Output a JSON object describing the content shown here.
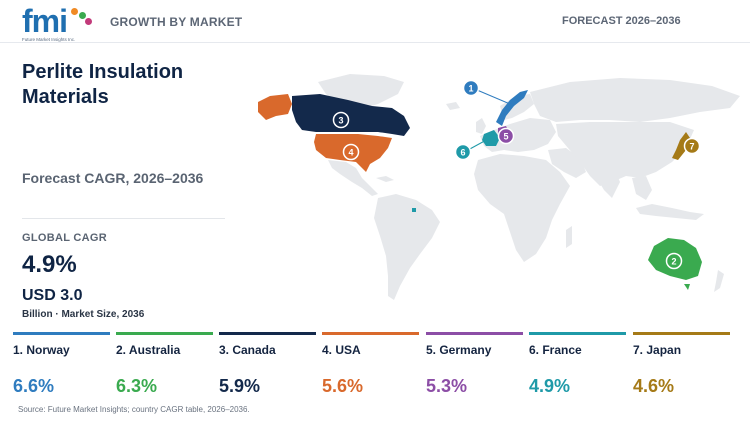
{
  "header": {
    "logo_text": "fmi",
    "logo_tagline": "Future Market Insights Inc.",
    "section_label": "GROWTH BY MARKET",
    "forecast_label": "FORECAST 2026–2036"
  },
  "summary": {
    "title": "Perlite Insulation Materials",
    "cagr_heading": "Forecast CAGR, 2026–2036",
    "global_label": "GLOBAL CAGR",
    "global_value": "4.9%",
    "market_size": "USD 3.0",
    "market_note": "Billion · Market Size, 2036"
  },
  "colors": {
    "land": "#e6e8eb",
    "norway": "#2f7cbf",
    "australia": "#3aaa4f",
    "canada": "#13294b",
    "usa": "#d9692c",
    "germany": "#8c4ea6",
    "france": "#1f9aa8",
    "japan": "#a57a17"
  },
  "chart_data": {
    "type": "bar",
    "categories": [
      "Norway",
      "Australia",
      "Canada",
      "USA",
      "Germany",
      "France",
      "Japan"
    ],
    "values": [
      6.6,
      6.3,
      5.9,
      5.6,
      5.3,
      4.9,
      4.6
    ],
    "title": "Perlite Insulation Materials",
    "ylabel": "CAGR, 2026–2036 (%)"
  },
  "countries": [
    {
      "rank": "1",
      "name_label": "1. Norway",
      "value_label": "6.6%",
      "color": "#2f7cbf"
    },
    {
      "rank": "2",
      "name_label": "2. Australia",
      "value_label": "6.3%",
      "color": "#3aaa4f"
    },
    {
      "rank": "3",
      "name_label": "3. Canada",
      "value_label": "5.9%",
      "color": "#13294b"
    },
    {
      "rank": "4",
      "name_label": "4. USA",
      "value_label": "5.6%",
      "color": "#d9692c"
    },
    {
      "rank": "5",
      "name_label": "5. Germany",
      "value_label": "5.3%",
      "color": "#8c4ea6"
    },
    {
      "rank": "6",
      "name_label": "6. France",
      "value_label": "4.9%",
      "color": "#1f9aa8"
    },
    {
      "rank": "7",
      "name_label": "7. Japan",
      "value_label": "4.6%",
      "color": "#a57a17"
    }
  ],
  "source": "Source: Future Market Insights; country CAGR table, 2026–2036."
}
